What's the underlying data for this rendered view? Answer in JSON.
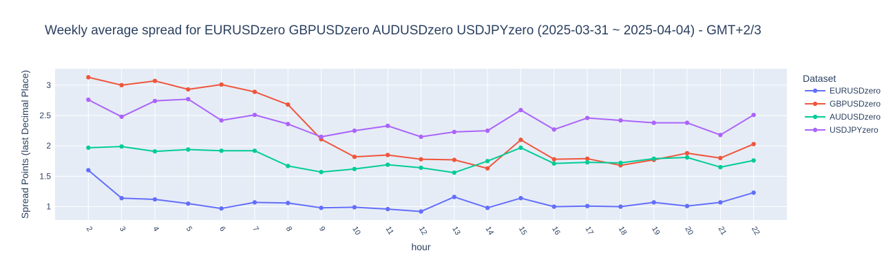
{
  "chart_data": {
    "type": "line",
    "title": "Weekly average spread for  EURUSDzero GBPUSDzero AUDUSDzero USDJPYzero (2025-03-31 ~ 2025-04-04) - GMT+2/3",
    "xlabel": "hour",
    "ylabel": "Spread Points (last Decimal Place)",
    "x": [
      2,
      3,
      4,
      5,
      6,
      7,
      8,
      9,
      10,
      11,
      12,
      13,
      14,
      15,
      16,
      17,
      18,
      19,
      20,
      21,
      22
    ],
    "y_ticks": [
      1,
      1.5,
      2,
      2.5,
      3
    ],
    "y_tick_labels": [
      "1",
      "1.5",
      "2",
      "2.5",
      "3"
    ],
    "ylim": [
      0.78,
      3.27
    ],
    "xlim": [
      1,
      23
    ],
    "grid": true,
    "legend": {
      "title": "Dataset",
      "placement": "right"
    },
    "series": [
      {
        "name": "EURUSDzero",
        "color": "#636efa",
        "values": [
          1.6,
          1.14,
          1.12,
          1.05,
          0.97,
          1.07,
          1.06,
          0.98,
          0.99,
          0.96,
          0.92,
          1.16,
          0.98,
          1.14,
          1.0,
          1.01,
          1.0,
          1.07,
          1.01,
          1.07,
          1.23
        ]
      },
      {
        "name": "GBPUSDzero",
        "color": "#ef553b",
        "values": [
          3.13,
          3.0,
          3.07,
          2.93,
          3.01,
          2.89,
          2.68,
          2.11,
          1.82,
          1.85,
          1.78,
          1.77,
          1.63,
          2.1,
          1.78,
          1.79,
          1.68,
          1.77,
          1.88,
          1.8,
          2.03
        ]
      },
      {
        "name": "AUDUSDzero",
        "color": "#00cc96",
        "values": [
          1.97,
          1.99,
          1.91,
          1.94,
          1.92,
          1.92,
          1.67,
          1.57,
          1.62,
          1.69,
          1.64,
          1.56,
          1.75,
          1.97,
          1.71,
          1.73,
          1.72,
          1.79,
          1.81,
          1.65,
          1.76
        ]
      },
      {
        "name": "USDJPYzero",
        "color": "#ab63fa",
        "values": [
          2.76,
          2.48,
          2.74,
          2.77,
          2.42,
          2.51,
          2.36,
          2.15,
          2.25,
          2.33,
          2.15,
          2.23,
          2.25,
          2.59,
          2.27,
          2.46,
          2.42,
          2.38,
          2.38,
          2.18,
          2.51
        ]
      }
    ]
  }
}
